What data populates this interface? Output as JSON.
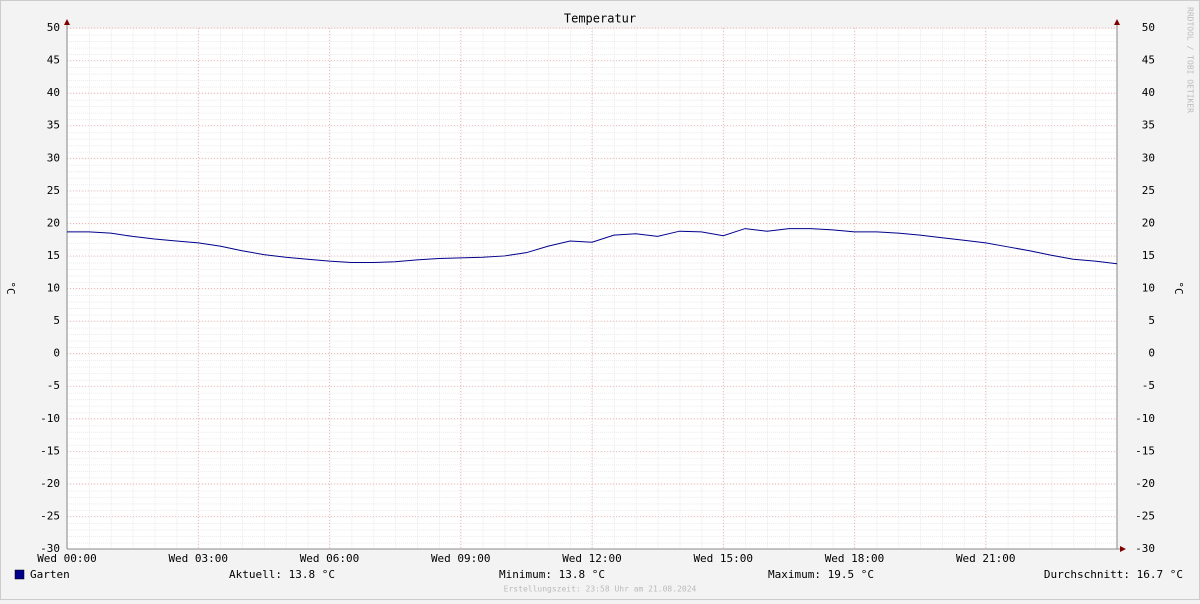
{
  "chart_data": {
    "type": "line",
    "title": "Temperatur",
    "y_label": "°C",
    "watermark": "RRDTOOL / TOBI OETIKER",
    "x": [
      0,
      0.5,
      1,
      1.5,
      2,
      2.5,
      3,
      3.5,
      4,
      4.5,
      5,
      5.5,
      6,
      6.5,
      7,
      7.5,
      8,
      8.5,
      9,
      9.5,
      10,
      10.5,
      11,
      11.5,
      12,
      12.5,
      13,
      13.5,
      14,
      14.5,
      15,
      15.5,
      16,
      16.5,
      17,
      17.5,
      18,
      18.5,
      19,
      19.5,
      20,
      20.5,
      21,
      21.5,
      22,
      22.5,
      23,
      23.5,
      24
    ],
    "xlim": [
      0,
      24
    ],
    "xticks": [
      {
        "value": 0,
        "label": "Wed 00:00"
      },
      {
        "value": 3,
        "label": "Wed 03:00"
      },
      {
        "value": 6,
        "label": "Wed 06:00"
      },
      {
        "value": 9,
        "label": "Wed 09:00"
      },
      {
        "value": 12,
        "label": "Wed 12:00"
      },
      {
        "value": 15,
        "label": "Wed 15:00"
      },
      {
        "value": 18,
        "label": "Wed 18:00"
      },
      {
        "value": 21,
        "label": "Wed 21:00"
      }
    ],
    "ylim": [
      -30,
      50
    ],
    "yticks": [
      -30,
      -25,
      -20,
      -15,
      -10,
      -5,
      0,
      5,
      10,
      15,
      20,
      25,
      30,
      35,
      40,
      45,
      50
    ],
    "grid": true,
    "series": [
      {
        "name": "Garten",
        "color": "#00008c",
        "values": [
          18.7,
          18.7,
          18.5,
          18.0,
          17.6,
          17.3,
          17.0,
          16.5,
          15.8,
          15.2,
          14.8,
          14.5,
          14.2,
          14.0,
          14.0,
          14.1,
          14.4,
          14.6,
          14.7,
          14.8,
          15.0,
          15.5,
          16.5,
          17.3,
          17.1,
          18.2,
          18.4,
          18.0,
          18.8,
          18.7,
          18.1,
          19.2,
          18.8,
          19.2,
          19.2,
          19.0,
          18.7,
          18.7,
          18.5,
          18.2,
          17.8,
          17.4,
          17.0,
          16.4,
          15.8,
          15.1,
          14.5,
          14.2,
          13.8
        ]
      }
    ],
    "stats": [
      "Aktuell: 13.8 °C",
      "Minimum: 13.8 °C",
      "Maximum: 19.5 °C",
      "Durchschnitt: 16.7 °C"
    ],
    "footer": "Erstellungszeit: 23:58 Uhr am 21.08.2024"
  }
}
